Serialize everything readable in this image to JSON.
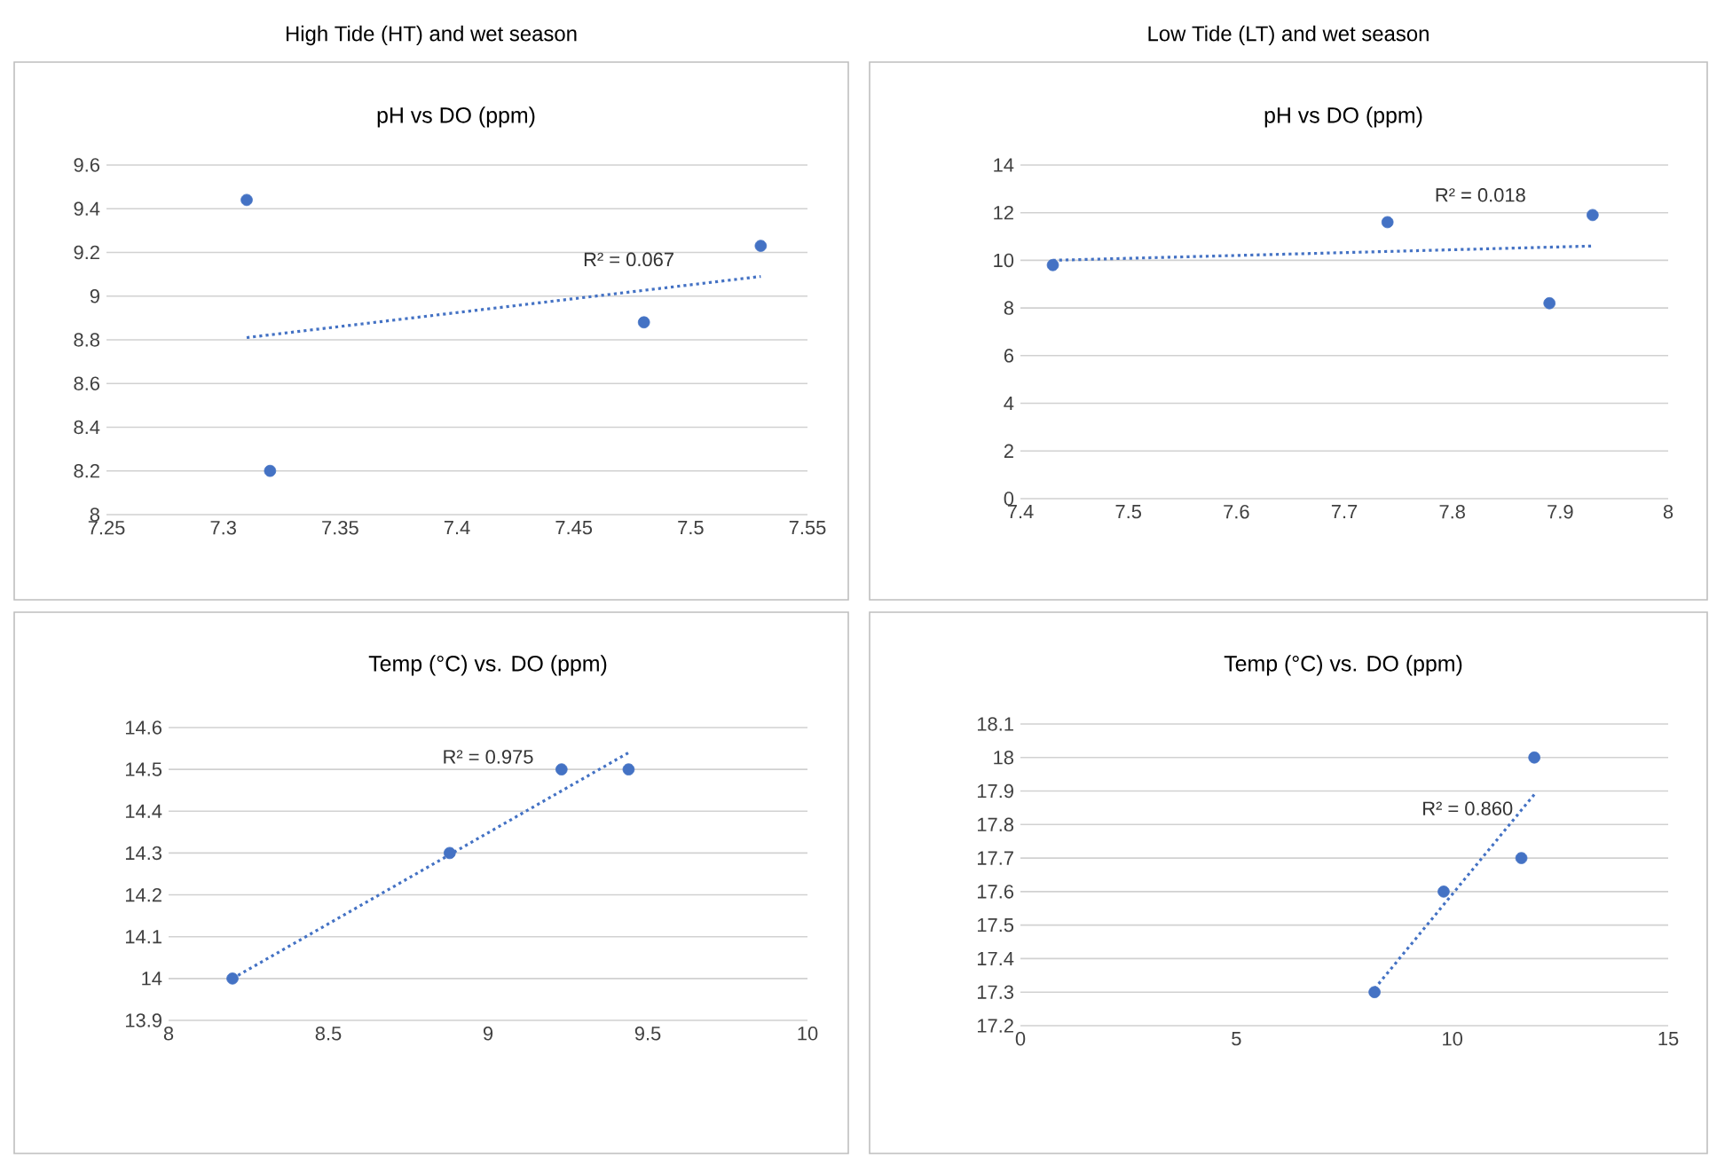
{
  "chart_data": [
    {
      "type": "scatter",
      "title": "High Tide (HT) and wet season",
      "subtitle": "pH vs DO (ppm)",
      "xlim": [
        7.25,
        7.55
      ],
      "xticks": [
        7.25,
        7.3,
        7.35,
        7.4,
        7.45,
        7.5,
        7.55
      ],
      "ylim": [
        8,
        9.6
      ],
      "yticks": [
        8,
        8.2,
        8.4,
        8.6,
        8.8,
        9,
        9.2,
        9.4,
        9.6
      ],
      "grid": "y",
      "marker": "circle",
      "series": [
        {
          "color": "#4472c4",
          "x": [
            7.31,
            7.32,
            7.48,
            7.53
          ],
          "values": [
            9.44,
            8.2,
            8.88,
            9.23
          ]
        },
        {
          "type": "line",
          "color": "#4472c4",
          "line_style": "dotted",
          "marker": "none",
          "x": [
            7.31,
            7.53
          ],
          "values": [
            8.81,
            9.09
          ]
        }
      ],
      "annotations": [
        "R² = 0.067"
      ]
    },
    {
      "type": "scatter",
      "title": "Low Tide (LT) and wet season",
      "subtitle": "pH vs DO (ppm)",
      "xlim": [
        7.4,
        8
      ],
      "xticks": [
        7.4,
        7.5,
        7.6,
        7.7,
        7.8,
        7.9,
        8
      ],
      "ylim": [
        0,
        14
      ],
      "yticks": [
        0,
        2,
        4,
        6,
        8,
        10,
        12,
        14
      ],
      "grid": "y",
      "marker": "circle",
      "series": [
        {
          "color": "#4472c4",
          "x": [
            7.43,
            7.74,
            7.89,
            7.93
          ],
          "values": [
            9.8,
            11.6,
            8.2,
            11.9
          ]
        },
        {
          "type": "line",
          "color": "#4472c4",
          "line_style": "dotted",
          "marker": "none",
          "x": [
            7.43,
            7.93
          ],
          "values": [
            10.0,
            10.6
          ]
        }
      ],
      "annotations": [
        "R² = 0.018"
      ]
    },
    {
      "type": "scatter",
      "title": "Temp (°C) vs. DO (ppm)",
      "xlim": [
        8,
        10
      ],
      "xticks": [
        8,
        8.5,
        9,
        9.5,
        10
      ],
      "ylim": [
        13.9,
        14.6
      ],
      "yticks": [
        13.9,
        14,
        14.1,
        14.2,
        14.3,
        14.4,
        14.5,
        14.6
      ],
      "grid": "y",
      "marker": "circle",
      "series": [
        {
          "color": "#4472c4",
          "x": [
            8.2,
            8.88,
            9.23,
            9.44
          ],
          "values": [
            14.0,
            14.3,
            14.5,
            14.5
          ]
        },
        {
          "type": "line",
          "color": "#4472c4",
          "line_style": "dotted",
          "marker": "none",
          "x": [
            8.2,
            9.44
          ],
          "values": [
            14.0,
            14.54
          ]
        }
      ],
      "annotations": [
        "R² = 0.975"
      ]
    },
    {
      "type": "scatter",
      "title": "Temp (°C) vs. DO (ppm)",
      "xlim": [
        0,
        15
      ],
      "xticks": [
        0,
        5,
        10,
        15
      ],
      "ylim": [
        17.2,
        18.1
      ],
      "yticks": [
        17.2,
        17.3,
        17.4,
        17.5,
        17.6,
        17.7,
        17.8,
        17.9,
        18,
        18.1
      ],
      "grid": "y",
      "marker": "circle",
      "series": [
        {
          "color": "#4472c4",
          "x": [
            8.2,
            9.8,
            11.6,
            11.9
          ],
          "values": [
            17.3,
            17.6,
            17.7,
            18.0
          ]
        },
        {
          "type": "line",
          "color": "#4472c4",
          "line_style": "dotted",
          "marker": "none",
          "x": [
            8.2,
            11.9
          ],
          "values": [
            17.31,
            17.89
          ]
        }
      ],
      "annotations": [
        "R² = 0.860"
      ]
    }
  ]
}
